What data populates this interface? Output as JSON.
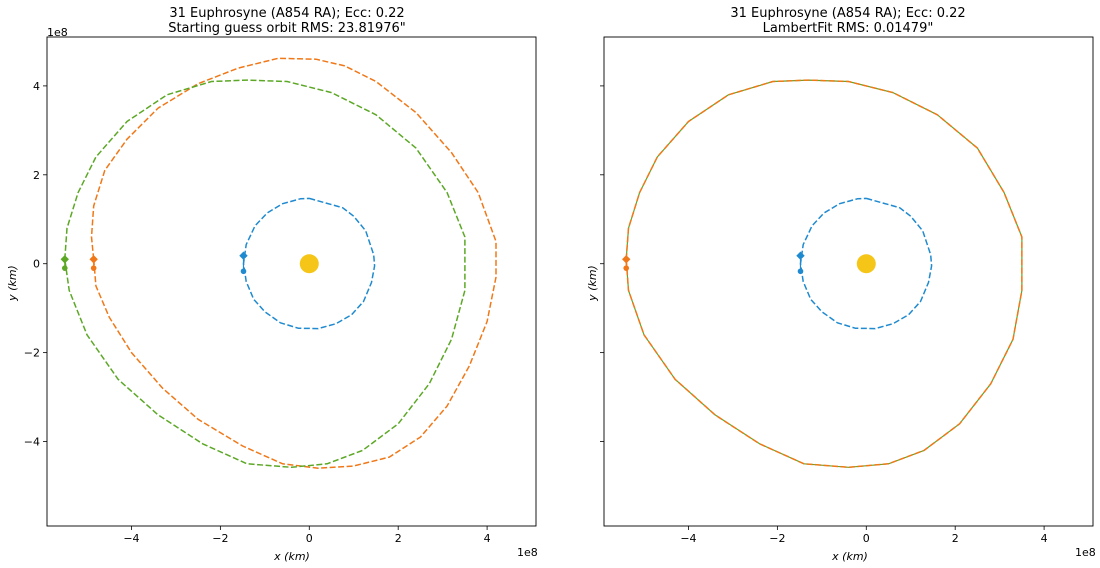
{
  "chart_data": [
    {
      "type": "line",
      "title_line1": "31 Euphrosyne (A854 RA); Ecc: 0.22",
      "title_line2": "Starting guess orbit RMS: 23.81976\"",
      "xlabel": "$x$ (km)",
      "ylabel": "$y$ (km)",
      "xlabel_text": "x (km)",
      "ylabel_text": "y (km)",
      "x_offset_label": "1e8",
      "y_offset_label": "1e8",
      "xlim": [
        -5.9,
        5.1
      ],
      "ylim": [
        -5.9,
        5.1
      ],
      "xticks": [
        -4,
        -2,
        0,
        2,
        4
      ],
      "yticks": [
        -4,
        -2,
        0,
        2,
        4
      ],
      "xtick_labels": [
        "−4",
        "−2",
        "0",
        "2",
        "4"
      ],
      "ytick_labels": [
        "−4",
        "−2",
        "0",
        "2",
        "4"
      ],
      "show_ytick_labels": true,
      "grid": false,
      "series": [
        {
          "key": "earth",
          "color": "#1f8ad0",
          "style": "dashed",
          "x": [
            0,
            0.75,
            1.0,
            1.27,
            1.45,
            1.47,
            1.4,
            1.22,
            0.95,
            0.6,
            0.2,
            -0.25,
            -0.65,
            -1.0,
            -1.25,
            -1.42,
            -1.48,
            -1.42,
            -1.22,
            -0.95,
            -0.6,
            -0.2,
            0
          ],
          "y": [
            1.47,
            1.26,
            1.07,
            0.74,
            0.2,
            -0.05,
            -0.42,
            -0.85,
            -1.15,
            -1.35,
            -1.46,
            -1.45,
            -1.33,
            -1.08,
            -0.8,
            -0.4,
            0.0,
            0.43,
            0.85,
            1.14,
            1.35,
            1.46,
            1.47
          ],
          "markers": [
            [
              -1.48,
              0.18,
              "diamond"
            ],
            [
              -1.48,
              -0.17,
              "circle"
            ]
          ]
        },
        {
          "key": "asteroid_guess",
          "color": "#f07818",
          "style": "dashed",
          "x": [
            -4.85,
            -4.9,
            -4.85,
            -4.6,
            -4.1,
            -3.4,
            -2.5,
            -1.6,
            -0.7,
            0.15,
            0.8,
            1.5,
            2.4,
            3.2,
            3.8,
            4.2,
            4.2,
            4.0,
            3.6,
            3.1,
            2.5,
            1.8,
            1.0,
            0.2,
            -0.6,
            -1.5,
            -2.5,
            -3.3,
            -4.0,
            -4.5,
            -4.8,
            -4.85
          ],
          "y": [
            0.1,
            0.6,
            1.3,
            2.1,
            2.8,
            3.5,
            4.05,
            4.4,
            4.62,
            4.6,
            4.45,
            4.1,
            3.4,
            2.5,
            1.6,
            0.5,
            -0.3,
            -1.3,
            -2.3,
            -3.2,
            -3.9,
            -4.35,
            -4.55,
            -4.6,
            -4.5,
            -4.1,
            -3.5,
            -2.8,
            -2.0,
            -1.2,
            -0.5,
            0.1
          ]
        },
        {
          "key": "asteroid_lambert",
          "color": "#5ca826",
          "style": "dashed",
          "x": [
            -5.5,
            -5.45,
            -5.2,
            -4.8,
            -4.1,
            -3.2,
            -2.2,
            -1.4,
            -0.5,
            0.5,
            1.5,
            2.4,
            3.1,
            3.5,
            3.5,
            3.2,
            2.7,
            2.0,
            1.2,
            0.4,
            -0.4,
            -1.4,
            -2.4,
            -3.4,
            -4.3,
            -5.0,
            -5.4,
            -5.5
          ],
          "y": [
            0.1,
            0.8,
            1.6,
            2.4,
            3.2,
            3.8,
            4.1,
            4.13,
            4.1,
            3.85,
            3.35,
            2.6,
            1.6,
            0.6,
            -0.6,
            -1.7,
            -2.7,
            -3.6,
            -4.2,
            -4.5,
            -4.58,
            -4.5,
            -4.05,
            -3.4,
            -2.6,
            -1.6,
            -0.6,
            0.1
          ],
          "markers": [
            [
              -5.5,
              0.1,
              "diamond"
            ],
            [
              -5.5,
              -0.1,
              "circle"
            ]
          ]
        }
      ],
      "extra_markers": [
        [
          -4.85,
          0.1,
          "#f07818",
          "diamond"
        ],
        [
          -4.85,
          -0.1,
          "#f07818",
          "circle"
        ]
      ],
      "sun": {
        "x": 0,
        "y": 0,
        "color": "#f5c518"
      }
    },
    {
      "type": "line",
      "title_line1": "31 Euphrosyne (A854 RA); Ecc: 0.22",
      "title_line2": "LambertFit RMS: 0.01479\"",
      "xlabel": "$x$ (km)",
      "ylabel": "$y$ (km)",
      "xlabel_text": "x (km)",
      "ylabel_text": "y (km)",
      "x_offset_label": "1e8",
      "y_offset_label": "",
      "xlim": [
        -5.9,
        5.1
      ],
      "ylim": [
        -5.9,
        5.1
      ],
      "xticks": [
        -4,
        -2,
        0,
        2,
        4
      ],
      "yticks": [
        -4,
        -2,
        0,
        2,
        4
      ],
      "xtick_labels": [
        "−4",
        "−2",
        "0",
        "2",
        "4"
      ],
      "ytick_labels": [
        "",
        "",
        "",
        "",
        ""
      ],
      "show_ytick_labels": false,
      "grid": false,
      "series": [
        {
          "key": "earth",
          "color": "#1f8ad0",
          "style": "dashed",
          "x": [
            0,
            0.75,
            1.0,
            1.27,
            1.45,
            1.47,
            1.4,
            1.22,
            0.95,
            0.6,
            0.2,
            -0.25,
            -0.65,
            -1.0,
            -1.25,
            -1.42,
            -1.48,
            -1.42,
            -1.22,
            -0.95,
            -0.6,
            -0.2,
            0
          ],
          "y": [
            1.47,
            1.26,
            1.07,
            0.74,
            0.2,
            -0.05,
            -0.42,
            -0.85,
            -1.15,
            -1.35,
            -1.46,
            -1.45,
            -1.33,
            -1.08,
            -0.8,
            -0.4,
            0.0,
            0.43,
            0.85,
            1.14,
            1.35,
            1.46,
            1.47
          ],
          "markers": [
            [
              -1.48,
              0.18,
              "diamond"
            ],
            [
              -1.48,
              -0.17,
              "circle"
            ]
          ]
        },
        {
          "key": "asteroid_fit",
          "color": "#5ca826",
          "style": "solid-thin",
          "x": [
            -5.4,
            -5.35,
            -5.1,
            -4.7,
            -4.0,
            -3.1,
            -2.1,
            -1.3,
            -0.4,
            0.6,
            1.6,
            2.5,
            3.1,
            3.5,
            3.5,
            3.3,
            2.8,
            2.1,
            1.3,
            0.5,
            -0.4,
            -1.4,
            -2.4,
            -3.4,
            -4.3,
            -5.0,
            -5.35,
            -5.4
          ],
          "y": [
            0.1,
            0.8,
            1.6,
            2.4,
            3.2,
            3.8,
            4.1,
            4.13,
            4.1,
            3.85,
            3.35,
            2.6,
            1.6,
            0.6,
            -0.6,
            -1.7,
            -2.7,
            -3.6,
            -4.2,
            -4.5,
            -4.58,
            -4.5,
            -4.05,
            -3.4,
            -2.6,
            -1.6,
            -0.6,
            0.1
          ]
        },
        {
          "key": "asteroid_fit_overlay",
          "color": "#f07818",
          "style": "dashed",
          "x": [
            -5.4,
            -5.35,
            -5.1,
            -4.7,
            -4.0,
            -3.1,
            -2.1,
            -1.3,
            -0.4,
            0.6,
            1.6,
            2.5,
            3.1,
            3.5,
            3.5,
            3.3,
            2.8,
            2.1,
            1.3,
            0.5,
            -0.4,
            -1.4,
            -2.4,
            -3.4,
            -4.3,
            -5.0,
            -5.35,
            -5.4
          ],
          "y": [
            0.1,
            0.8,
            1.6,
            2.4,
            3.2,
            3.8,
            4.1,
            4.13,
            4.1,
            3.85,
            3.35,
            2.6,
            1.6,
            0.6,
            -0.6,
            -1.7,
            -2.7,
            -3.6,
            -4.2,
            -4.5,
            -4.58,
            -4.5,
            -4.05,
            -3.4,
            -2.6,
            -1.6,
            -0.6,
            0.1
          ],
          "markers": [
            [
              -5.4,
              0.1,
              "diamond"
            ],
            [
              -5.4,
              -0.1,
              "circle"
            ]
          ]
        }
      ],
      "extra_markers": [],
      "sun": {
        "x": 0,
        "y": 0,
        "color": "#f5c518"
      }
    }
  ]
}
